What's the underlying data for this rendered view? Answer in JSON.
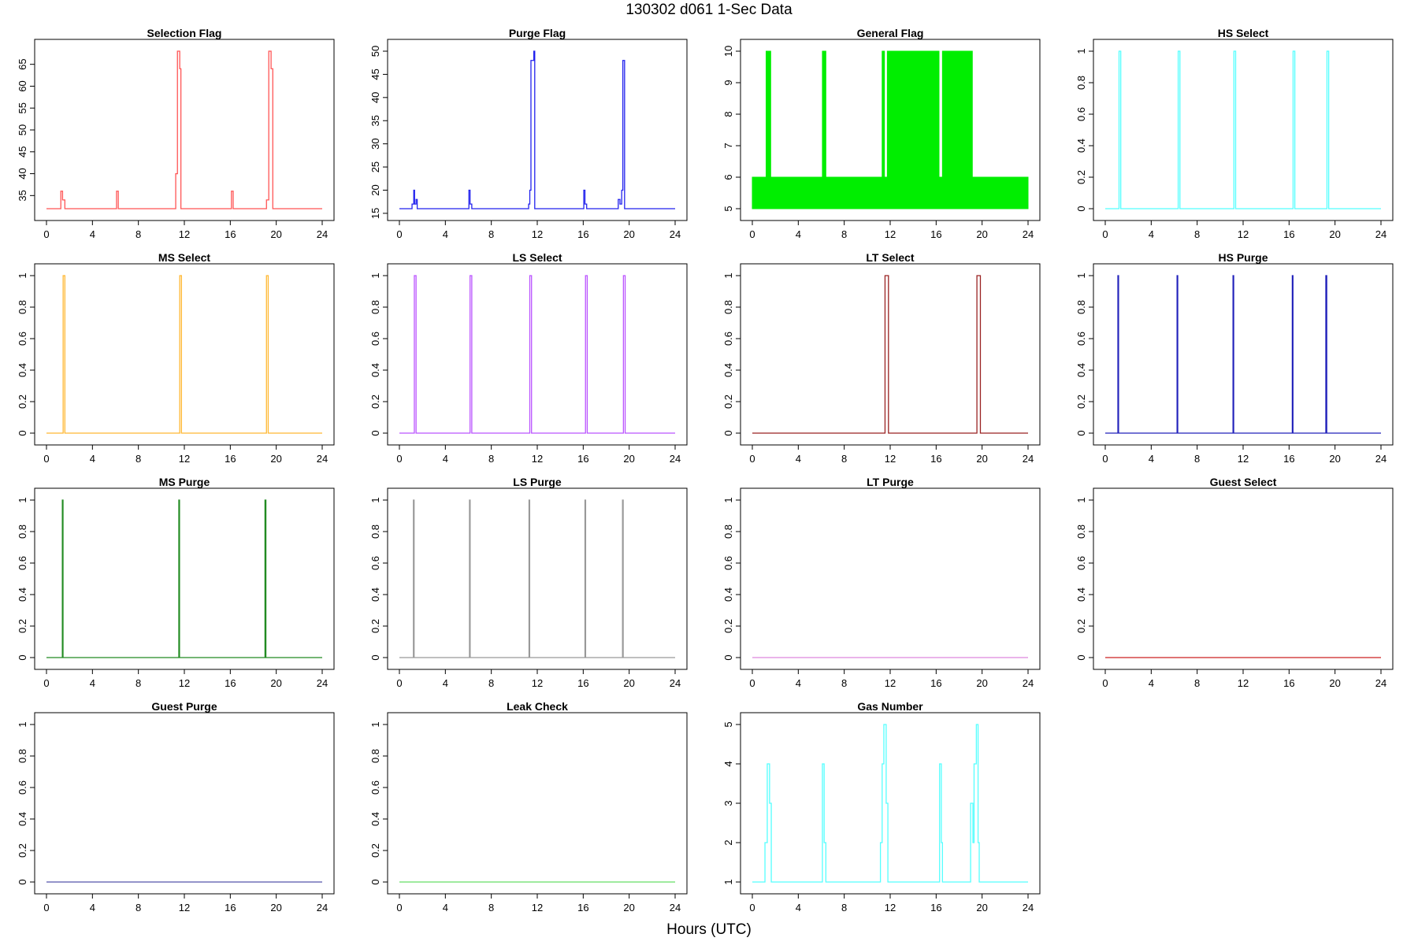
{
  "title": "130302   d061   1-Sec Data",
  "xlabel": "Hours (UTC)",
  "chart_data": [
    {
      "type": "line",
      "title": "Selection Flag",
      "color": "#FF5555",
      "xlim": [
        0,
        24
      ],
      "ylim": [
        32,
        68
      ],
      "xticks": [
        0,
        4,
        8,
        12,
        16,
        20,
        24
      ],
      "yticks": [
        35,
        40,
        45,
        50,
        55,
        60,
        65
      ],
      "x": [
        0,
        1.25,
        1.25,
        1.4,
        1.4,
        1.6,
        1.6,
        6.1,
        6.1,
        6.25,
        6.25,
        11.25,
        11.25,
        11.4,
        11.4,
        11.6,
        11.6,
        11.7,
        11.7,
        16.1,
        16.1,
        16.25,
        16.25,
        19.15,
        19.15,
        19.35,
        19.35,
        19.55,
        19.55,
        19.7,
        19.7,
        24
      ],
      "y": [
        32,
        32,
        36,
        36,
        34,
        34,
        32,
        32,
        36,
        36,
        32,
        32,
        40,
        40,
        68,
        68,
        64,
        64,
        32,
        32,
        36,
        36,
        32,
        32,
        34,
        34,
        68,
        68,
        64,
        64,
        32,
        32
      ]
    },
    {
      "type": "line",
      "title": "Purge Flag",
      "color": "#2222EE",
      "xlim": [
        0,
        24
      ],
      "ylim": [
        16,
        50
      ],
      "xticks": [
        0,
        4,
        8,
        12,
        16,
        20,
        24
      ],
      "yticks": [
        15,
        20,
        25,
        30,
        35,
        40,
        45,
        50
      ],
      "x": [
        0,
        1.1,
        1.1,
        1.25,
        1.25,
        1.32,
        1.32,
        1.45,
        1.45,
        1.55,
        1.55,
        6.05,
        6.05,
        6.15,
        6.15,
        6.3,
        6.3,
        11.25,
        11.25,
        11.35,
        11.35,
        11.45,
        11.45,
        11.7,
        11.7,
        11.78,
        11.78,
        16.05,
        16.05,
        16.15,
        16.15,
        16.3,
        16.3,
        19.05,
        19.05,
        19.2,
        19.2,
        19.35,
        19.35,
        19.45,
        19.45,
        19.6,
        19.6,
        19.95,
        19.95,
        24
      ],
      "y": [
        16,
        16,
        17,
        17,
        20,
        20,
        17,
        17,
        18,
        18,
        16,
        16,
        20,
        20,
        17,
        17,
        16,
        16,
        17,
        17,
        20,
        20,
        48,
        48,
        50,
        50,
        16,
        16,
        20,
        20,
        17,
        17,
        16,
        16,
        18,
        18,
        17,
        17,
        20,
        20,
        48,
        48,
        16,
        16,
        16,
        16
      ]
    },
    {
      "type": "area",
      "title": "General Flag",
      "color": "#00EE00",
      "xlim": [
        0,
        24
      ],
      "ylim": [
        5,
        10
      ],
      "xticks": [
        0,
        4,
        8,
        12,
        16,
        20,
        24
      ],
      "yticks": [
        5,
        6,
        7,
        8,
        9,
        10
      ],
      "x": [
        0,
        1.2,
        1.2,
        1.6,
        1.6,
        6.1,
        6.1,
        6.4,
        6.4,
        11.3,
        11.3,
        11.5,
        11.5,
        11.75,
        11.75,
        16.25,
        16.25,
        16.55,
        16.55,
        19.15,
        19.15,
        19.55,
        19.55,
        24
      ],
      "y": [
        6,
        6,
        10,
        10,
        6,
        6,
        10,
        10,
        6,
        6,
        10,
        10,
        6,
        6,
        10,
        10,
        6,
        6,
        10,
        10,
        6,
        6,
        6,
        6
      ]
    },
    {
      "type": "line",
      "title": "HS Select",
      "color": "#55FFFF",
      "xlim": [
        0,
        24
      ],
      "ylim": [
        0,
        1
      ],
      "xticks": [
        0,
        4,
        8,
        12,
        16,
        20,
        24
      ],
      "yticks": [
        0,
        0.2,
        0.4,
        0.6,
        0.8,
        1
      ],
      "x": [
        0,
        1.2,
        1.2,
        1.35,
        1.35,
        6.35,
        6.35,
        6.5,
        6.5,
        11.2,
        11.2,
        11.35,
        11.35,
        16.35,
        16.35,
        16.5,
        16.5,
        19.3,
        19.3,
        19.45,
        19.45,
        24
      ],
      "y": [
        0,
        0,
        1,
        1,
        0,
        0,
        1,
        1,
        0,
        0,
        1,
        1,
        0,
        0,
        1,
        1,
        0,
        0,
        1,
        1,
        0,
        0
      ]
    },
    {
      "type": "line",
      "title": "MS Select",
      "color": "#FFB833",
      "xlim": [
        0,
        24
      ],
      "ylim": [
        0,
        1
      ],
      "xticks": [
        0,
        4,
        8,
        12,
        16,
        20,
        24
      ],
      "yticks": [
        0,
        0.2,
        0.4,
        0.6,
        0.8,
        1
      ],
      "x": [
        0,
        1.45,
        1.45,
        1.6,
        1.6,
        11.6,
        11.6,
        11.75,
        11.75,
        19.15,
        19.15,
        19.3,
        19.3,
        24
      ],
      "y": [
        0,
        0,
        1,
        1,
        0,
        0,
        1,
        1,
        0,
        0,
        1,
        1,
        0,
        0
      ]
    },
    {
      "type": "line",
      "title": "LS Select",
      "color": "#BB55FF",
      "xlim": [
        0,
        24
      ],
      "ylim": [
        0,
        1
      ],
      "xticks": [
        0,
        4,
        8,
        12,
        16,
        20,
        24
      ],
      "yticks": [
        0,
        0.2,
        0.4,
        0.6,
        0.8,
        1
      ],
      "x": [
        0,
        1.3,
        1.3,
        1.45,
        1.45,
        6.15,
        6.15,
        6.3,
        6.3,
        11.35,
        11.35,
        11.5,
        11.5,
        16.2,
        16.2,
        16.35,
        16.35,
        19.5,
        19.5,
        19.65,
        19.65,
        24
      ],
      "y": [
        0,
        0,
        1,
        1,
        0,
        0,
        1,
        1,
        0,
        0,
        1,
        1,
        0,
        0,
        1,
        1,
        0,
        0,
        1,
        1,
        0,
        0
      ]
    },
    {
      "type": "line",
      "title": "LT Select",
      "color": "#992222",
      "xlim": [
        0,
        24
      ],
      "ylim": [
        0,
        1
      ],
      "xticks": [
        0,
        4,
        8,
        12,
        16,
        20,
        24
      ],
      "yticks": [
        0,
        0.2,
        0.4,
        0.6,
        0.8,
        1
      ],
      "x": [
        0,
        11.55,
        11.55,
        11.85,
        11.85,
        19.55,
        19.55,
        19.85,
        19.85,
        24
      ],
      "y": [
        0,
        0,
        1,
        1,
        0,
        0,
        1,
        1,
        0,
        0
      ]
    },
    {
      "type": "line",
      "title": "HS Purge",
      "color": "#2222BB",
      "xlim": [
        0,
        24
      ],
      "ylim": [
        0,
        1
      ],
      "xticks": [
        0,
        4,
        8,
        12,
        16,
        20,
        24
      ],
      "yticks": [
        0,
        0.2,
        0.4,
        0.6,
        0.8,
        1
      ],
      "x": [
        0,
        1.1,
        1.1,
        1.16,
        1.16,
        6.25,
        6.25,
        6.31,
        6.31,
        11.12,
        11.12,
        11.18,
        11.18,
        16.28,
        16.28,
        16.34,
        16.34,
        19.2,
        19.2,
        19.28,
        19.28,
        24
      ],
      "y": [
        0,
        0,
        1,
        1,
        0,
        0,
        1,
        1,
        0,
        0,
        1,
        1,
        0,
        0,
        1,
        1,
        0,
        0,
        1,
        1,
        0,
        0
      ]
    },
    {
      "type": "line",
      "title": "MS Purge",
      "color": "#228B22",
      "xlim": [
        0,
        24
      ],
      "ylim": [
        0,
        1
      ],
      "xticks": [
        0,
        4,
        8,
        12,
        16,
        20,
        24
      ],
      "yticks": [
        0,
        0.2,
        0.4,
        0.6,
        0.8,
        1
      ],
      "x": [
        0,
        1.38,
        1.38,
        1.44,
        1.44,
        11.52,
        11.52,
        11.58,
        11.58,
        19.02,
        19.02,
        19.1,
        19.1,
        24
      ],
      "y": [
        0,
        0,
        1,
        1,
        0,
        0,
        1,
        1,
        0,
        0,
        1,
        1,
        0,
        0
      ]
    },
    {
      "type": "line",
      "title": "LS Purge",
      "color": "#999999",
      "xlim": [
        0,
        24
      ],
      "ylim": [
        0,
        1
      ],
      "xticks": [
        0,
        4,
        8,
        12,
        16,
        20,
        24
      ],
      "yticks": [
        0,
        0.2,
        0.4,
        0.6,
        0.8,
        1
      ],
      "x": [
        0,
        1.22,
        1.22,
        1.28,
        1.28,
        6.1,
        6.1,
        6.16,
        6.16,
        11.28,
        11.28,
        11.34,
        11.34,
        16.15,
        16.15,
        16.21,
        16.21,
        19.42,
        19.42,
        19.48,
        19.48,
        24
      ],
      "y": [
        0,
        0,
        1,
        1,
        0,
        0,
        1,
        1,
        0,
        0,
        1,
        1,
        0,
        0,
        1,
        1,
        0,
        0,
        1,
        1,
        0,
        0
      ]
    },
    {
      "type": "line",
      "title": "LT Purge",
      "color": "#DD88DD",
      "xlim": [
        0,
        24
      ],
      "ylim": [
        0,
        1
      ],
      "xticks": [
        0,
        4,
        8,
        12,
        16,
        20,
        24
      ],
      "yticks": [
        0,
        0.2,
        0.4,
        0.6,
        0.8,
        1
      ],
      "x": [
        0,
        24
      ],
      "y": [
        0,
        0
      ]
    },
    {
      "type": "line",
      "title": "Guest Select",
      "color": "#CC2222",
      "xlim": [
        0,
        24
      ],
      "ylim": [
        0,
        1
      ],
      "xticks": [
        0,
        4,
        8,
        12,
        16,
        20,
        24
      ],
      "yticks": [
        0,
        0.2,
        0.4,
        0.6,
        0.8,
        1
      ],
      "x": [
        0,
        24
      ],
      "y": [
        0,
        0
      ]
    },
    {
      "type": "line",
      "title": "Guest Purge",
      "color": "#5555AA",
      "xlim": [
        0,
        24
      ],
      "ylim": [
        0,
        1
      ],
      "xticks": [
        0,
        4,
        8,
        12,
        16,
        20,
        24
      ],
      "yticks": [
        0,
        0.2,
        0.4,
        0.6,
        0.8,
        1
      ],
      "x": [
        0,
        24
      ],
      "y": [
        0,
        0
      ]
    },
    {
      "type": "line",
      "title": "Leak Check",
      "color": "#66DD66",
      "xlim": [
        0,
        24
      ],
      "ylim": [
        0,
        1
      ],
      "xticks": [
        0,
        4,
        8,
        12,
        16,
        20,
        24
      ],
      "yticks": [
        0,
        0.2,
        0.4,
        0.6,
        0.8,
        1
      ],
      "x": [
        0,
        24
      ],
      "y": [
        0,
        0
      ]
    },
    {
      "type": "line",
      "title": "Gas Number",
      "color": "#55FFFF",
      "xlim": [
        0,
        24
      ],
      "ylim": [
        1,
        5
      ],
      "xticks": [
        0,
        4,
        8,
        12,
        16,
        20,
        24
      ],
      "yticks": [
        1,
        2,
        3,
        4,
        5
      ],
      "x": [
        0,
        1.1,
        1.1,
        1.3,
        1.3,
        1.5,
        1.5,
        1.65,
        1.65,
        6.1,
        6.1,
        6.25,
        6.25,
        6.4,
        6.4,
        11.15,
        11.15,
        11.3,
        11.3,
        11.45,
        11.45,
        11.65,
        11.65,
        11.8,
        11.8,
        16.3,
        16.3,
        16.45,
        16.45,
        16.55,
        16.55,
        19.0,
        19.0,
        19.2,
        19.2,
        19.3,
        19.3,
        19.5,
        19.5,
        19.65,
        19.65,
        19.75,
        19.75,
        24
      ],
      "y": [
        1,
        1,
        2,
        2,
        4,
        4,
        3,
        3,
        1,
        1,
        4,
        4,
        2,
        2,
        1,
        1,
        2,
        2,
        4,
        4,
        5,
        5,
        3,
        3,
        1,
        1,
        4,
        4,
        2,
        2,
        1,
        1,
        3,
        3,
        2,
        2,
        4,
        4,
        5,
        5,
        2,
        2,
        1,
        1
      ]
    }
  ]
}
